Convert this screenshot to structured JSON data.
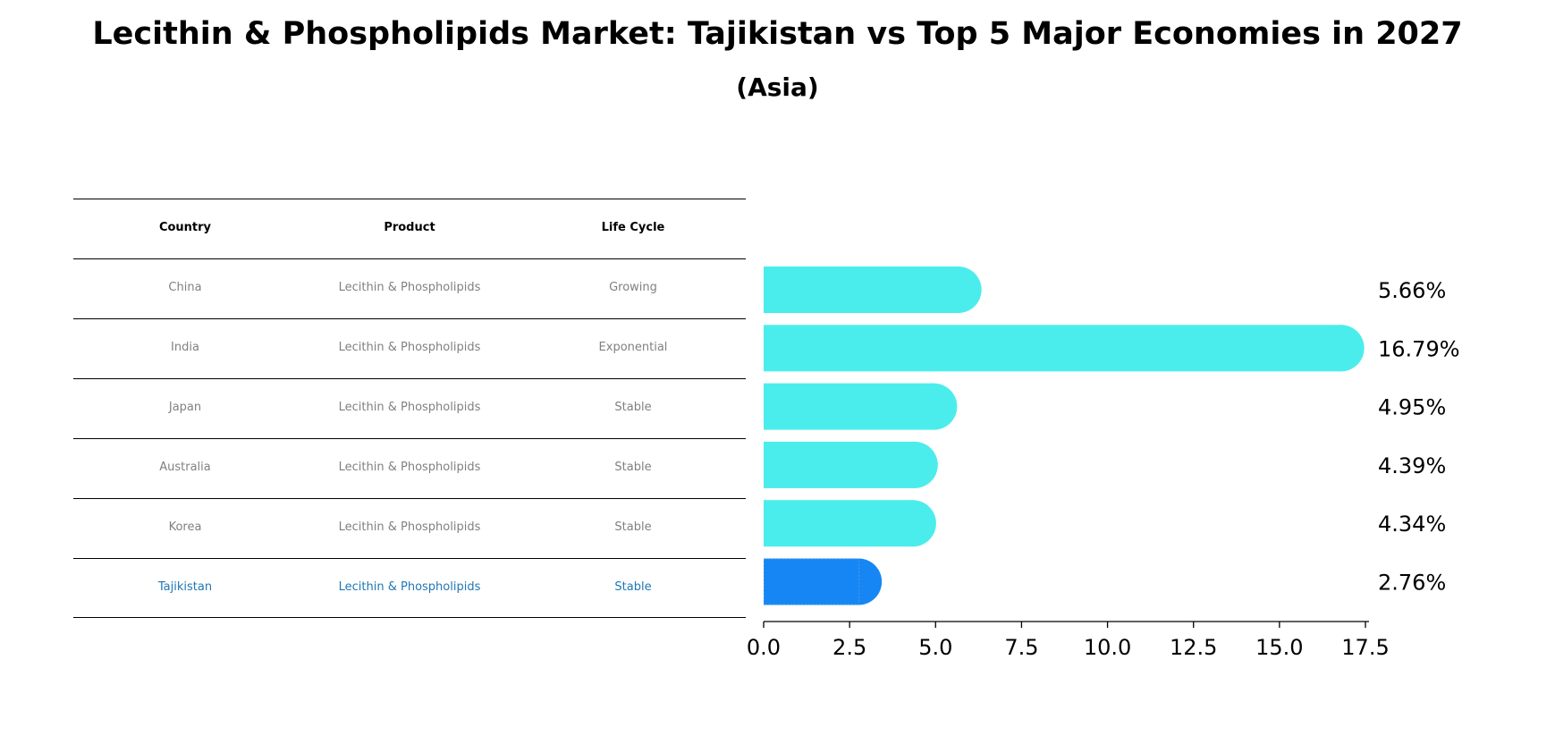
{
  "title": "Lecithin & Phospholipids Market: Tajikistan vs Top 5 Major Economies in 2027",
  "subtitle": "(Asia)",
  "table": {
    "headers": [
      "Country",
      "Product",
      "Life Cycle"
    ],
    "rows": [
      [
        "China",
        "Lecithin & Phospholipids",
        "Growing"
      ],
      [
        "India",
        "Lecithin & Phospholipids",
        "Exponential"
      ],
      [
        "Japan",
        "Lecithin & Phospholipids",
        "Stable"
      ],
      [
        "Australia",
        "Lecithin & Phospholipids",
        "Stable"
      ],
      [
        "Korea",
        "Lecithin & Phospholipids",
        "Stable"
      ],
      [
        "Tajikistan",
        "Lecithin & Phospholipids",
        "Stable"
      ]
    ]
  },
  "colors": {
    "bar": "#4BEDEC",
    "highlight_bar": "#1786F5",
    "highlight_text": "#1f77b4",
    "table_text": "#808080"
  },
  "chart_data": {
    "type": "bar",
    "orientation": "horizontal",
    "categories": [
      "China",
      "India",
      "Japan",
      "Australia",
      "Korea",
      "Tajikistan"
    ],
    "values": [
      5.66,
      16.79,
      4.95,
      4.39,
      4.34,
      2.76
    ],
    "value_labels": [
      "5.66%",
      "16.79%",
      "4.95%",
      "4.39%",
      "4.34%",
      "2.76%"
    ],
    "highlight_index": 5,
    "xlim": [
      0,
      17.5
    ],
    "xticks": [
      0.0,
      2.5,
      5.0,
      7.5,
      10.0,
      12.5,
      15.0,
      17.5
    ],
    "xtick_labels": [
      "0.0",
      "2.5",
      "5.0",
      "7.5",
      "10.0",
      "12.5",
      "15.0",
      "17.5"
    ],
    "grid": false
  }
}
